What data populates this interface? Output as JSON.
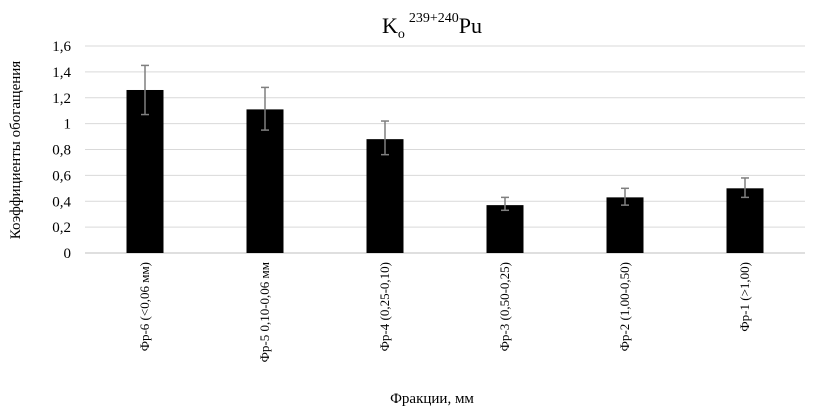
{
  "chart_data": {
    "type": "bar",
    "title": {
      "main": "K",
      "sub": "o",
      "sup": "239+240",
      "tail": "Pu"
    },
    "xlabel": "Фракции, мм",
    "ylabel": "Коэффициенты обогащения",
    "categories": [
      "Фр-6 (<0,06 мм)",
      "Фр-5 0,10-0,06 мм",
      "Фр-4 (0,25-0,10)",
      "Фр-3 (0,50-0,25)",
      "Фр-2 (1,00-0,50)",
      "Фр-1 (>1,00)"
    ],
    "values": [
      1.26,
      1.11,
      0.88,
      0.37,
      0.43,
      0.5
    ],
    "error_low": [
      1.07,
      0.95,
      0.76,
      0.33,
      0.37,
      0.43
    ],
    "error_high": [
      1.45,
      1.28,
      1.02,
      0.43,
      0.5,
      0.58
    ],
    "ylim": [
      0,
      1.6
    ],
    "yticks": [
      0,
      0.2,
      0.4,
      0.6,
      0.8,
      1,
      1.2,
      1.4,
      1.6
    ],
    "ytick_labels": [
      "0",
      "0,2",
      "0,4",
      "0,6",
      "0,8",
      "1",
      "1,2",
      "1,4",
      "1,6"
    ],
    "grid": true,
    "bar_color": "#000000",
    "grid_color": "#d9d9d9",
    "error_color": "#7f7f7f"
  }
}
